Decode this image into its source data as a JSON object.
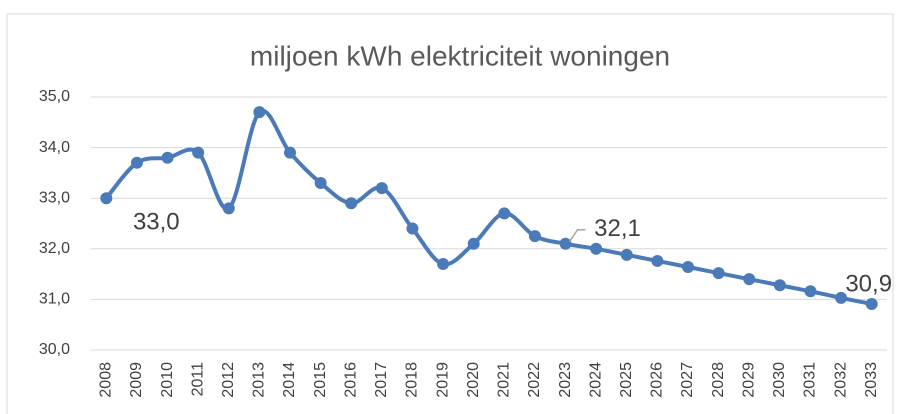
{
  "chart_data": {
    "type": "line",
    "title": "miljoen kWh elektriciteit woningen",
    "categories": [
      "2008",
      "2009",
      "2010",
      "2011",
      "2012",
      "2013",
      "2014",
      "2015",
      "2016",
      "2017",
      "2018",
      "2019",
      "2020",
      "2021",
      "2022",
      "2023",
      "2024",
      "2025",
      "2026",
      "2027",
      "2028",
      "2029",
      "2030",
      "2031",
      "2032",
      "2033"
    ],
    "series": [
      {
        "name": "miljoen kWh elektriciteit woningen",
        "color": "#4a7ab8",
        "values": [
          33.0,
          33.7,
          33.8,
          33.9,
          32.8,
          34.7,
          33.9,
          33.3,
          32.9,
          33.2,
          32.4,
          31.7,
          32.1,
          32.7,
          32.25,
          32.1,
          32.0,
          31.88,
          31.76,
          31.64,
          31.52,
          31.4,
          31.28,
          31.16,
          31.03,
          30.91
        ],
        "value_labels": [
          "33,0",
          null,
          null,
          null,
          null,
          null,
          null,
          null,
          null,
          null,
          null,
          null,
          null,
          null,
          null,
          "32,1",
          null,
          null,
          null,
          null,
          null,
          null,
          null,
          null,
          null,
          "30,9"
        ]
      }
    ],
    "ylim": [
      30,
      35
    ],
    "yticks": [
      {
        "value": 30,
        "label": "30,0"
      },
      {
        "value": 31,
        "label": "31,0"
      },
      {
        "value": 32,
        "label": "32,0"
      },
      {
        "value": 33,
        "label": "33,0"
      },
      {
        "value": 34,
        "label": "34,0"
      },
      {
        "value": 35,
        "label": "35,0"
      }
    ],
    "grid": true,
    "smooth": true
  }
}
